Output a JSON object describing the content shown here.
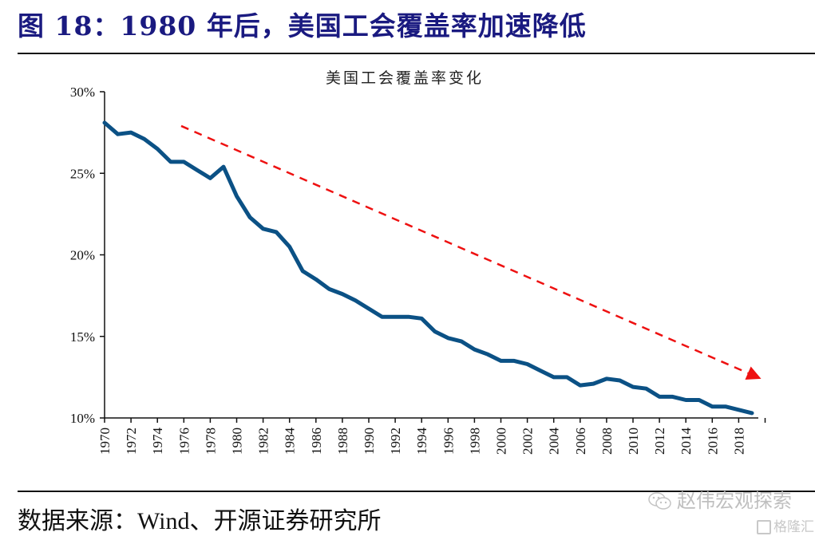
{
  "figure": {
    "title": "图 18：1980 年后，美国工会覆盖率加速降低",
    "source": "数据来源：Wind、开源证券研究所",
    "watermark": "赵伟宏观探索",
    "watermark_logo_text": "格隆汇"
  },
  "colors": {
    "title": "#1a1a80",
    "series": "#0b5185",
    "trend_arrow": "#ee1111"
  },
  "chart_data": {
    "type": "line",
    "title": "美国工会覆盖率变化",
    "xlabel": "",
    "ylabel": "",
    "ylim": [
      10,
      30
    ],
    "yticks": [
      "10%",
      "15%",
      "20%",
      "25%",
      "30%"
    ],
    "ytick_values": [
      10,
      15,
      20,
      25,
      30
    ],
    "xtick_labels": [
      "1970",
      "1972",
      "1974",
      "1976",
      "1978",
      "1980",
      "1982",
      "1984",
      "1986",
      "1988",
      "1990",
      "1992",
      "1994",
      "1996",
      "1998",
      "2000",
      "2002",
      "2004",
      "2006",
      "2008",
      "2010",
      "2012",
      "2014",
      "2016",
      "2018"
    ],
    "grid": false,
    "legend": "none",
    "x": [
      1970,
      1971,
      1972,
      1973,
      1974,
      1975,
      1976,
      1977,
      1978,
      1979,
      1980,
      1981,
      1982,
      1983,
      1984,
      1985,
      1986,
      1987,
      1988,
      1989,
      1990,
      1991,
      1992,
      1993,
      1994,
      1995,
      1996,
      1997,
      1998,
      1999,
      2000,
      2001,
      2002,
      2003,
      2004,
      2005,
      2006,
      2007,
      2008,
      2009,
      2010,
      2011,
      2012,
      2013,
      2014,
      2015,
      2016,
      2017,
      2018,
      2019
    ],
    "series": [
      {
        "name": "美国工会覆盖率",
        "unit": "%",
        "values": [
          28.1,
          27.4,
          27.5,
          27.1,
          26.5,
          25.7,
          25.7,
          25.2,
          24.7,
          25.4,
          23.6,
          22.3,
          21.6,
          21.4,
          20.5,
          19.0,
          18.5,
          17.9,
          17.6,
          17.2,
          16.7,
          16.2,
          16.2,
          16.2,
          16.1,
          15.3,
          14.9,
          14.7,
          14.2,
          13.9,
          13.5,
          13.5,
          13.3,
          12.9,
          12.5,
          12.5,
          12.0,
          12.1,
          12.4,
          12.3,
          11.9,
          11.8,
          11.3,
          11.3,
          11.1,
          11.1,
          10.7,
          10.7,
          10.5,
          10.3
        ]
      }
    ],
    "annotations": [
      {
        "type": "trend-arrow",
        "style": "dashed",
        "from": {
          "x": 1975.8,
          "y": 27.9
        },
        "to": {
          "x": 2019.7,
          "y": 12.4
        }
      }
    ]
  }
}
